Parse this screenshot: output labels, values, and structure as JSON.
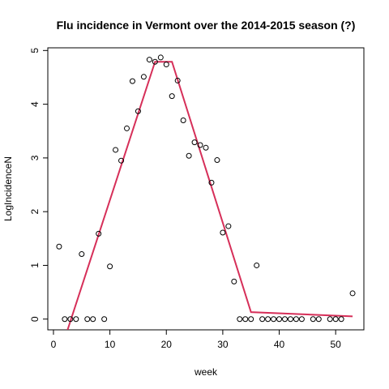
{
  "chart_data": {
    "type": "scatter",
    "title": "Flu incidence in Vermont over the 2014-2015 season (?)",
    "xlabel": "week",
    "ylabel": "LogIncidenceN",
    "xlim": [
      -1,
      55
    ],
    "ylim": [
      -0.2,
      5.05
    ],
    "xticks": [
      0,
      10,
      20,
      30,
      40,
      50
    ],
    "yticks": [
      0,
      1,
      2,
      3,
      4,
      5
    ],
    "grid": false,
    "colors": {
      "points": "#000000",
      "fit_line": "#D62F59"
    },
    "points": [
      {
        "x": 1,
        "y": 1.35
      },
      {
        "x": 2,
        "y": 0
      },
      {
        "x": 3,
        "y": 0
      },
      {
        "x": 4,
        "y": 0
      },
      {
        "x": 5,
        "y": 1.21
      },
      {
        "x": 6,
        "y": 0
      },
      {
        "x": 7,
        "y": 0
      },
      {
        "x": 8,
        "y": 1.59
      },
      {
        "x": 9,
        "y": 0
      },
      {
        "x": 10,
        "y": 0.98
      },
      {
        "x": 11,
        "y": 3.15
      },
      {
        "x": 12,
        "y": 2.95
      },
      {
        "x": 13,
        "y": 3.55
      },
      {
        "x": 14,
        "y": 4.43
      },
      {
        "x": 15,
        "y": 3.87
      },
      {
        "x": 16,
        "y": 4.51
      },
      {
        "x": 17,
        "y": 4.83
      },
      {
        "x": 18,
        "y": 4.79
      },
      {
        "x": 19,
        "y": 4.87
      },
      {
        "x": 20,
        "y": 4.74
      },
      {
        "x": 21,
        "y": 4.15
      },
      {
        "x": 22,
        "y": 4.44
      },
      {
        "x": 23,
        "y": 3.7
      },
      {
        "x": 24,
        "y": 3.04
      },
      {
        "x": 25,
        "y": 3.29
      },
      {
        "x": 26,
        "y": 3.24
      },
      {
        "x": 27,
        "y": 3.19
      },
      {
        "x": 28,
        "y": 2.54
      },
      {
        "x": 29,
        "y": 2.96
      },
      {
        "x": 30,
        "y": 1.61
      },
      {
        "x": 31,
        "y": 1.73
      },
      {
        "x": 32,
        "y": 0.7
      },
      {
        "x": 33,
        "y": 0
      },
      {
        "x": 34,
        "y": 0
      },
      {
        "x": 35,
        "y": 0
      },
      {
        "x": 36,
        "y": 1.0
      },
      {
        "x": 37,
        "y": 0
      },
      {
        "x": 38,
        "y": 0
      },
      {
        "x": 39,
        "y": 0
      },
      {
        "x": 40,
        "y": 0
      },
      {
        "x": 41,
        "y": 0
      },
      {
        "x": 42,
        "y": 0
      },
      {
        "x": 43,
        "y": 0
      },
      {
        "x": 44,
        "y": 0
      },
      {
        "x": 46,
        "y": 0
      },
      {
        "x": 47,
        "y": 0
      },
      {
        "x": 49,
        "y": 0
      },
      {
        "x": 50,
        "y": 0
      },
      {
        "x": 51,
        "y": 0
      },
      {
        "x": 53,
        "y": 0.48
      }
    ],
    "fit_line": [
      {
        "x": 2.5,
        "y": -0.2
      },
      {
        "x": 18,
        "y": 4.79
      },
      {
        "x": 21,
        "y": 4.79
      },
      {
        "x": 35,
        "y": 0.13
      },
      {
        "x": 53,
        "y": 0.05
      }
    ]
  }
}
